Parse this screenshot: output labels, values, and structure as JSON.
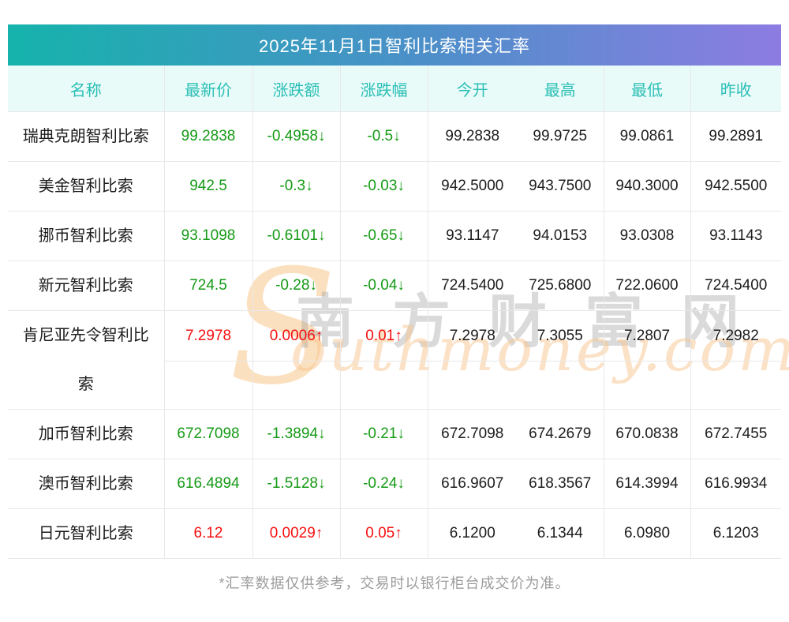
{
  "title": "2025年11月1日智利比索相关汇率",
  "table": {
    "headers": [
      "名称",
      "最新价",
      "涨跌额",
      "涨跌幅",
      "今开",
      "最高",
      "最低",
      "昨收"
    ],
    "rows": [
      {
        "name": "瑞典克朗智利比索",
        "latest": "99.2838",
        "change": "-0.4958↓",
        "pct": "-0.5↓",
        "open": "99.2838",
        "high": "99.9725",
        "low": "99.0861",
        "prev": "99.2891",
        "trend": "down",
        "tall": false
      },
      {
        "name": "美金智利比索",
        "latest": "942.5",
        "change": "-0.3↓",
        "pct": "-0.03↓",
        "open": "942.5000",
        "high": "943.7500",
        "low": "940.3000",
        "prev": "942.5500",
        "trend": "down",
        "tall": false
      },
      {
        "name": "挪币智利比索",
        "latest": "93.1098",
        "change": "-0.6101↓",
        "pct": "-0.65↓",
        "open": "93.1147",
        "high": "94.0153",
        "low": "93.0308",
        "prev": "93.1143",
        "trend": "down",
        "tall": false
      },
      {
        "name": "新元智利比索",
        "latest": "724.5",
        "change": "-0.28↓",
        "pct": "-0.04↓",
        "open": "724.5400",
        "high": "725.6800",
        "low": "722.0600",
        "prev": "724.5400",
        "trend": "down",
        "tall": false
      },
      {
        "name": "肯尼亚先令智利比索",
        "latest": "7.2978",
        "change": "0.0006↑",
        "pct": "0.01↑",
        "open": "7.2978",
        "high": "7.3055",
        "low": "7.2807",
        "prev": "7.2982",
        "trend": "up",
        "tall": true
      },
      {
        "name": "加币智利比索",
        "latest": "672.7098",
        "change": "-1.3894↓",
        "pct": "-0.21↓",
        "open": "672.7098",
        "high": "674.2679",
        "low": "670.0838",
        "prev": "672.7455",
        "trend": "down",
        "tall": false
      },
      {
        "name": "澳币智利比索",
        "latest": "616.4894",
        "change": "-1.5128↓",
        "pct": "-0.24↓",
        "open": "616.9607",
        "high": "618.3567",
        "low": "614.3994",
        "prev": "616.9934",
        "trend": "down",
        "tall": false
      },
      {
        "name": "日元智利比索",
        "latest": "6.12",
        "change": "0.0029↑",
        "pct": "0.05↑",
        "open": "6.1200",
        "high": "6.1344",
        "low": "6.0980",
        "prev": "6.1203",
        "trend": "up",
        "tall": false
      }
    ]
  },
  "watermark": {
    "s": "S",
    "cn": "南方财富网",
    "en": "outhmoney.com"
  },
  "footer": "*汇率数据仅供参考，交易时以银行柜台成交价为准。",
  "colors": {
    "gradient_left": "#15b3ab",
    "gradient_mid": "#4a90c8",
    "gradient_right": "#8d7ce2",
    "header_bg": "#e9fbf9",
    "header_text": "#2abfb5",
    "down": "#159a15",
    "up": "#f60f0f"
  }
}
